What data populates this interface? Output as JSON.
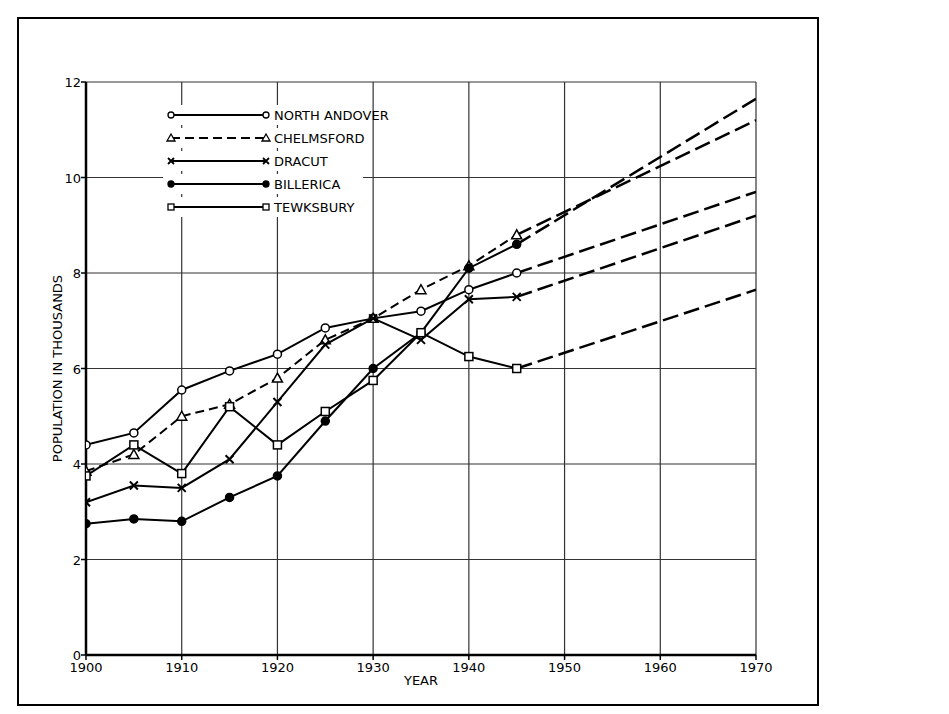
{
  "chart_data": {
    "type": "line",
    "x_label": "YEAR",
    "y_label": "POPULATION IN THOUSANDS",
    "x": [
      1900,
      1905,
      1910,
      1915,
      1920,
      1925,
      1930,
      1935,
      1940,
      1945,
      1970
    ],
    "series": [
      {
        "name": "NORTH ANDOVER",
        "color": "#000000",
        "marker": "circle-open",
        "line_style": "solid",
        "values": [
          4.4,
          4.65,
          5.55,
          5.95,
          6.3,
          6.85,
          7.05,
          7.2,
          7.65,
          8.0,
          9.7
        ]
      },
      {
        "name": "CHELMSFORD",
        "color": "#000000",
        "marker": "triangle-open",
        "line_style": "dashed",
        "values": [
          3.85,
          4.2,
          5.0,
          5.25,
          5.8,
          6.6,
          7.05,
          7.65,
          8.15,
          8.8,
          11.2
        ]
      },
      {
        "name": "DRACUT",
        "color": "#000000",
        "marker": "x",
        "line_style": "solid",
        "values": [
          3.2,
          3.55,
          3.5,
          4.1,
          5.3,
          6.5,
          7.05,
          6.6,
          7.45,
          7.5,
          9.2
        ]
      },
      {
        "name": "BILLERICA",
        "color": "#000000",
        "marker": "circle",
        "line_style": "solid",
        "values": [
          2.75,
          2.85,
          2.8,
          3.3,
          3.75,
          4.9,
          6.0,
          6.75,
          8.1,
          8.6,
          11.65
        ]
      },
      {
        "name": "TEWKSBURY",
        "color": "#000000",
        "marker": "square-open",
        "line_style": "solid",
        "values": [
          3.75,
          4.4,
          3.8,
          5.2,
          4.4,
          5.1,
          5.75,
          6.75,
          6.25,
          6.0,
          7.65
        ]
      }
    ],
    "xlim": [
      1900,
      1970
    ],
    "ylim": [
      0,
      12
    ],
    "xticks": [
      1900,
      1910,
      1920,
      1930,
      1940,
      1950,
      1960,
      1970
    ],
    "yticks": [
      0,
      2,
      4,
      6,
      8,
      10,
      12
    ],
    "grid": true,
    "legend": "upper left"
  }
}
